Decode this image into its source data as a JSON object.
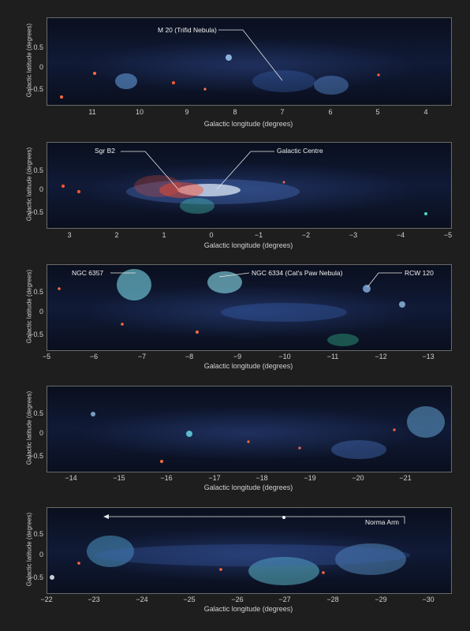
{
  "ylabel": "Galactic latitude (degrees)",
  "xlabel": "Galactic longitude (degrees)",
  "yticks": [
    "0.5",
    "0",
    "−0.5"
  ],
  "panels": [
    {
      "xticks": [
        "11",
        "10",
        "9",
        "8",
        "7",
        "6",
        "5",
        "4"
      ],
      "annotations": [
        {
          "text": "M 20 (Trifid Nebula)"
        }
      ]
    },
    {
      "xticks": [
        "3",
        "2",
        "1",
        "0",
        "−1",
        "−2",
        "−3",
        "−4",
        "−5"
      ],
      "annotations": [
        {
          "text": "Sgr B2"
        },
        {
          "text": "Galactic Centre"
        }
      ]
    },
    {
      "xticks": [
        "−5",
        "−6",
        "−7",
        "−8",
        "−9",
        "−10",
        "−11",
        "−12",
        "−13"
      ],
      "annotations": [
        {
          "text": "NGC 6357"
        },
        {
          "text": "NGC 6334 (Cat's Paw Nebula)"
        },
        {
          "text": "RCW 120"
        }
      ]
    },
    {
      "xticks": [
        "−14",
        "−15",
        "−16",
        "−17",
        "−18",
        "−19",
        "−20",
        "−21"
      ],
      "annotations": []
    },
    {
      "xticks": [
        "−22",
        "−23",
        "−24",
        "−25",
        "−26",
        "−27",
        "−28",
        "−29",
        "−30"
      ],
      "annotations": [
        {
          "text": "Norma Arm"
        }
      ]
    }
  ]
}
